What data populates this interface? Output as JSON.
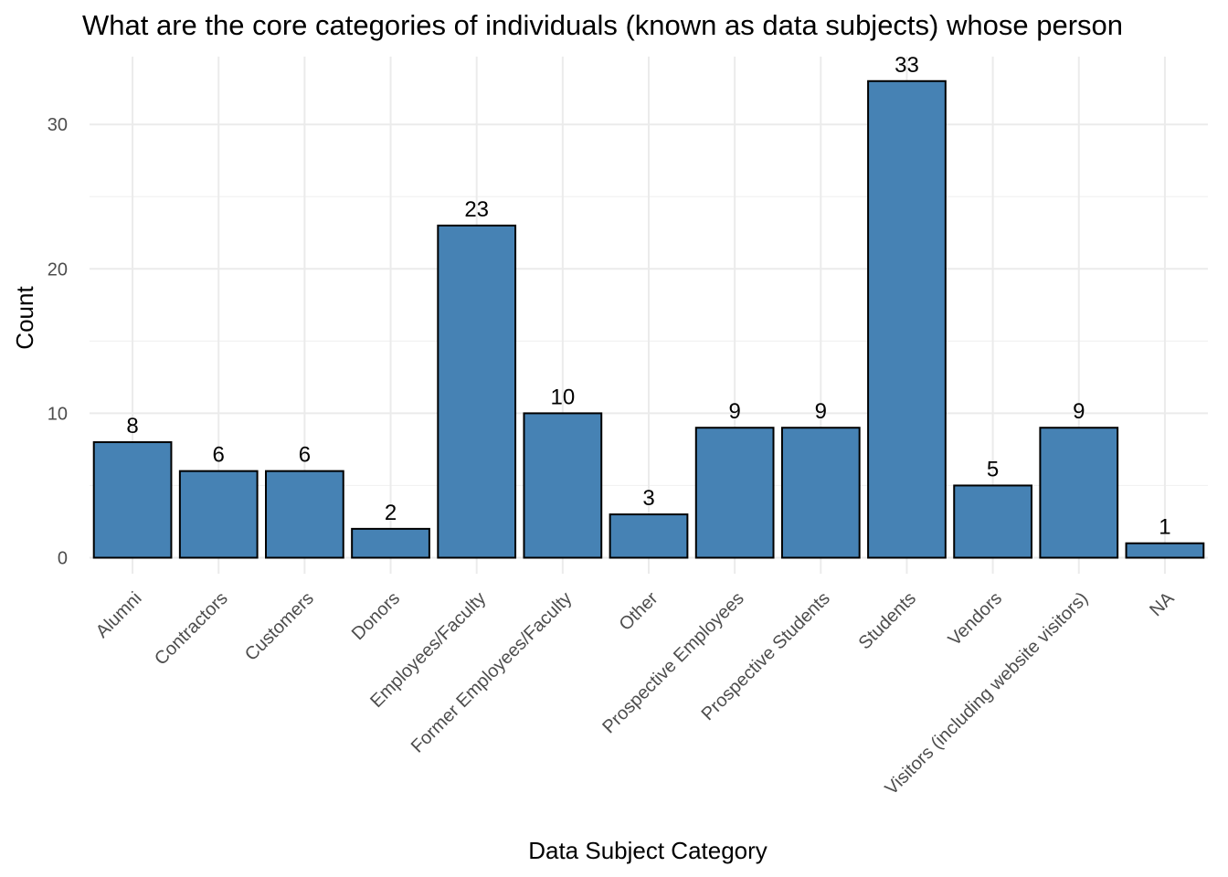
{
  "chart_data": {
    "type": "bar",
    "title": "What are the core categories of individuals (known as data subjects) whose person",
    "xlabel": "Data Subject Category",
    "ylabel": "Count",
    "categories": [
      "Alumni",
      "Contractors",
      "Customers",
      "Donors",
      "Employees/Faculty",
      "Former Employees/Faculty",
      "Other",
      "Prospective Employees",
      "Prospective Students",
      "Students",
      "Vendors",
      "Visitors (including website visitors)",
      "NA"
    ],
    "values": [
      8,
      6,
      6,
      2,
      23,
      10,
      3,
      9,
      9,
      33,
      5,
      9,
      1
    ],
    "yticks": [
      0,
      10,
      20,
      30
    ],
    "ylim": [
      0,
      34.65
    ],
    "grid": true,
    "bar_color": "#4682B4",
    "bar_outline": "#000000",
    "background": "#FFFFFF"
  }
}
